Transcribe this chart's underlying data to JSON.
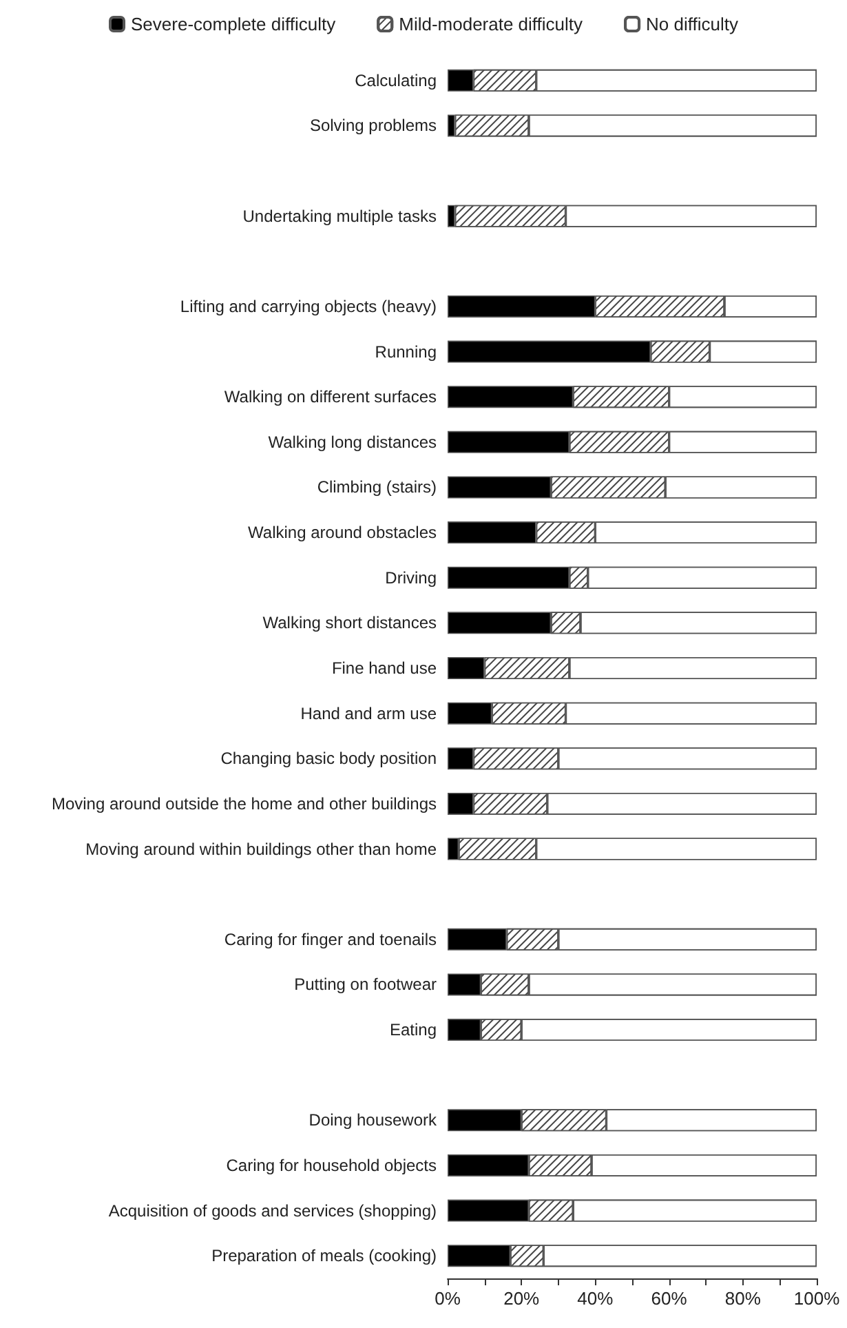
{
  "chart_data": {
    "type": "bar",
    "orientation": "horizontal",
    "stacked": true,
    "categories": [
      "Calculating",
      "Solving problems",
      null,
      "Undertaking multiple tasks",
      null,
      "Lifting and carrying objects (heavy)",
      "Running",
      "Walking on different surfaces",
      "Walking long distances",
      "Climbing (stairs)",
      "Walking around obstacles",
      "Driving",
      "Walking short distances",
      "Fine hand use",
      "Hand and arm use",
      "Changing basic body position",
      "Moving around outside the home and other buildings",
      "Moving around within buildings other than home",
      null,
      "Caring for finger and toenails",
      "Putting on footwear",
      "Eating",
      null,
      "Doing housework",
      "Caring for household objects",
      "Acquisition of goods and services (shopping)",
      "Preparation of meals (cooking)"
    ],
    "series": [
      {
        "name": "Severe-complete difficulty",
        "color": "#000000",
        "values": [
          7,
          2,
          null,
          2,
          null,
          40,
          55,
          34,
          33,
          28,
          24,
          33,
          28,
          10,
          12,
          7,
          7,
          3,
          null,
          16,
          9,
          9,
          null,
          20,
          22,
          22,
          17
        ]
      },
      {
        "name": "Mild-moderate difficulty",
        "color": "#ffffff",
        "values": [
          17,
          20,
          null,
          30,
          null,
          35,
          16,
          26,
          27,
          31,
          16,
          5,
          8,
          23,
          20,
          23,
          20,
          21,
          null,
          14,
          13,
          11,
          null,
          23,
          17,
          12,
          9
        ]
      },
      {
        "name": "No difficulty",
        "color": "#ffffff",
        "values": [
          76,
          78,
          null,
          68,
          null,
          25,
          29,
          40,
          40,
          41,
          60,
          62,
          64,
          67,
          68,
          70,
          73,
          76,
          null,
          70,
          78,
          80,
          null,
          57,
          61,
          66,
          74
        ]
      }
    ],
    "xlim": [
      0,
      100
    ],
    "xticks": [
      {
        "value": 0,
        "label": "0%"
      },
      {
        "value": 10,
        "label": null
      },
      {
        "value": 20,
        "label": "20%"
      },
      {
        "value": 30,
        "label": null
      },
      {
        "value": 40,
        "label": "40%"
      },
      {
        "value": 50,
        "label": null
      },
      {
        "value": 60,
        "label": "60%"
      },
      {
        "value": 70,
        "label": null
      },
      {
        "value": 80,
        "label": "80%"
      },
      {
        "value": 90,
        "label": null
      },
      {
        "value": 100,
        "label": "100%"
      }
    ],
    "grid": false,
    "legend": "top"
  }
}
